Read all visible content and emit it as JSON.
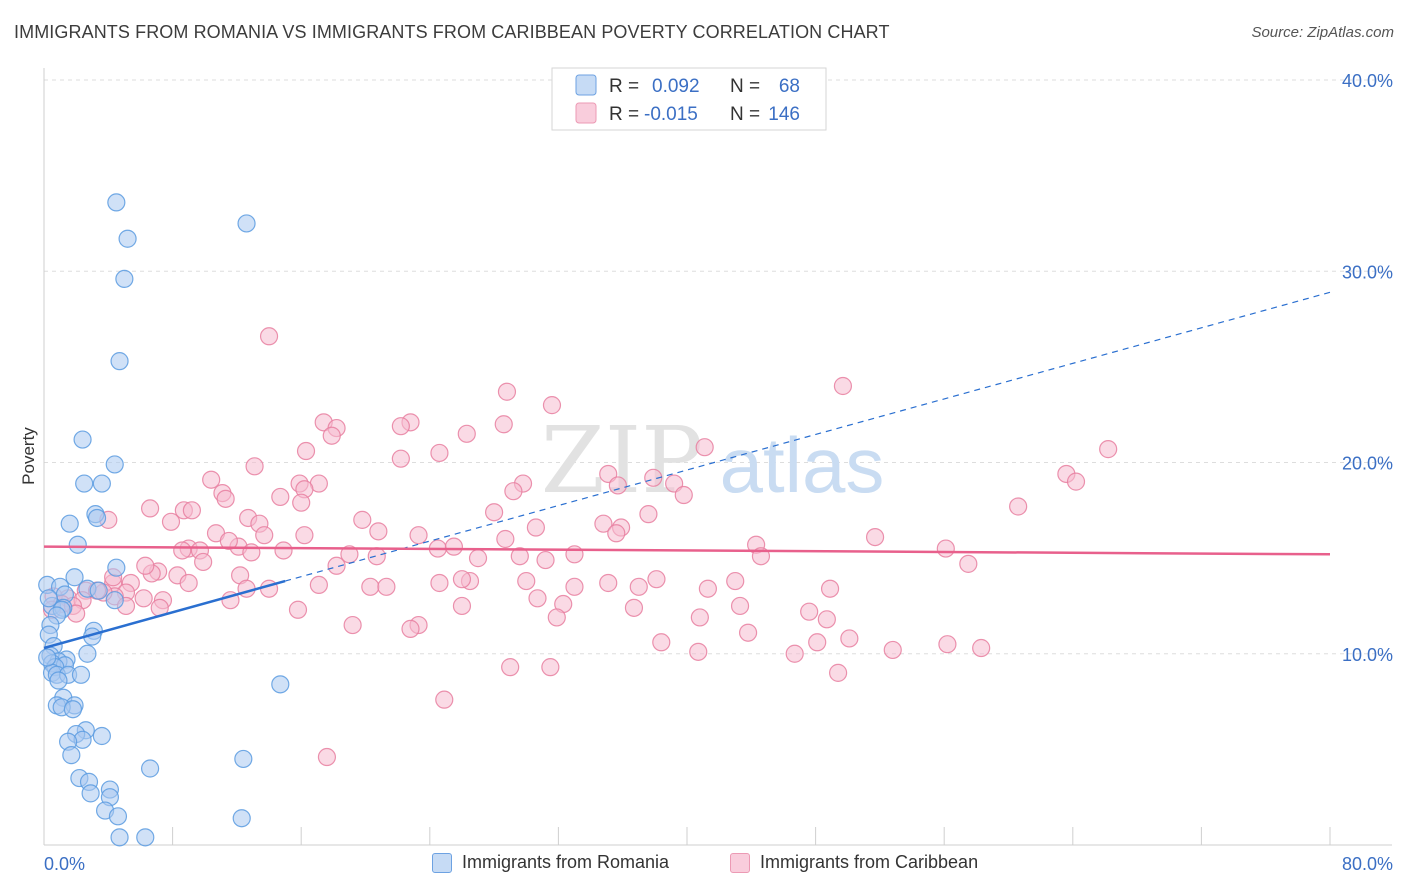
{
  "title": "IMMIGRANTS FROM ROMANIA VS IMMIGRANTS FROM CARIBBEAN POVERTY CORRELATION CHART",
  "source": "Source: ZipAtlas.com",
  "watermark": {
    "zip": "ZIP",
    "atlas": "atlas"
  },
  "colors": {
    "romania": "#5b9be0",
    "romania_fill": "#a9c9f0",
    "caribbean": "#e87fa0",
    "caribbean_fill": "#f5bcd0",
    "trend_romania": "#2a6fd0",
    "trend_caribbean": "#e8608c",
    "axis_text": "#3b6fc4"
  },
  "legend_top": [
    {
      "r_label": "R =",
      "r_value": "0.092",
      "n_label": "N =",
      "n_value": "68"
    },
    {
      "r_label": "R =",
      "r_value": "-0.015",
      "n_label": "N =",
      "n_value": "146"
    }
  ],
  "chart_data": {
    "type": "scatter",
    "xlabel": "",
    "ylabel": "Poverty",
    "xlim": [
      0,
      80
    ],
    "ylim": [
      0,
      40
    ],
    "x_tick_labels": [
      "0.0%",
      "80.0%"
    ],
    "y_ticks": [
      10,
      20,
      30,
      40
    ],
    "y_tick_labels": [
      "10.0%",
      "20.0%",
      "30.0%",
      "40.0%"
    ],
    "grid": true,
    "legend_position": "top-center",
    "series": [
      {
        "name": "Immigrants from Romania",
        "r": 0.092,
        "n": 68,
        "trend_solid": [
          [
            0,
            10.3
          ],
          [
            15,
            13.8
          ]
        ],
        "trend_dashed": [
          [
            15,
            13.8
          ],
          [
            80,
            28.9
          ]
        ],
        "points": [
          [
            4.5,
            33.6
          ],
          [
            5.2,
            31.7
          ],
          [
            5.0,
            29.6
          ],
          [
            12.6,
            32.5
          ],
          [
            4.7,
            25.3
          ],
          [
            2.4,
            21.2
          ],
          [
            4.4,
            19.9
          ],
          [
            2.5,
            18.9
          ],
          [
            3.6,
            18.9
          ],
          [
            3.2,
            17.3
          ],
          [
            3.3,
            17.1
          ],
          [
            1.6,
            16.8
          ],
          [
            2.1,
            15.7
          ],
          [
            4.5,
            14.5
          ],
          [
            1.9,
            14.0
          ],
          [
            0.2,
            13.6
          ],
          [
            1.0,
            13.5
          ],
          [
            2.7,
            13.4
          ],
          [
            3.4,
            13.3
          ],
          [
            1.3,
            13.1
          ],
          [
            4.4,
            12.8
          ],
          [
            0.5,
            12.5
          ],
          [
            1.2,
            12.4
          ],
          [
            1.1,
            12.3
          ],
          [
            0.8,
            12.0
          ],
          [
            0.4,
            11.5
          ],
          [
            3.1,
            11.2
          ],
          [
            0.3,
            11.0
          ],
          [
            3.0,
            10.9
          ],
          [
            0.6,
            10.4
          ],
          [
            2.7,
            10.0
          ],
          [
            0.4,
            9.9
          ],
          [
            1.4,
            9.7
          ],
          [
            0.9,
            9.6
          ],
          [
            0.5,
            9.5
          ],
          [
            1.3,
            9.4
          ],
          [
            0.7,
            9.3
          ],
          [
            0.5,
            9.0
          ],
          [
            0.8,
            8.9
          ],
          [
            1.5,
            8.9
          ],
          [
            2.3,
            8.9
          ],
          [
            0.9,
            8.6
          ],
          [
            14.7,
            8.4
          ],
          [
            1.2,
            7.7
          ],
          [
            0.8,
            7.3
          ],
          [
            1.9,
            7.3
          ],
          [
            1.1,
            7.2
          ],
          [
            1.8,
            7.1
          ],
          [
            2.6,
            6.0
          ],
          [
            2.0,
            5.8
          ],
          [
            3.6,
            5.7
          ],
          [
            2.4,
            5.5
          ],
          [
            1.5,
            5.4
          ],
          [
            1.7,
            4.7
          ],
          [
            12.4,
            4.5
          ],
          [
            6.6,
            4.0
          ],
          [
            2.2,
            3.5
          ],
          [
            2.8,
            3.3
          ],
          [
            4.1,
            2.9
          ],
          [
            2.9,
            2.7
          ],
          [
            4.1,
            2.5
          ],
          [
            3.8,
            1.8
          ],
          [
            4.6,
            1.5
          ],
          [
            12.3,
            1.4
          ],
          [
            4.7,
            0.4
          ],
          [
            6.3,
            0.4
          ],
          [
            0.2,
            9.8
          ],
          [
            0.3,
            12.9
          ]
        ]
      },
      {
        "name": "Immigrants from Caribbean",
        "r": -0.015,
        "n": 146,
        "trend_solid": [
          [
            0,
            15.6
          ],
          [
            80,
            15.2
          ]
        ],
        "points": [
          [
            14.0,
            26.6
          ],
          [
            49.7,
            24.0
          ],
          [
            28.8,
            23.7
          ],
          [
            31.6,
            23.0
          ],
          [
            17.4,
            22.1
          ],
          [
            22.8,
            22.1
          ],
          [
            22.2,
            21.9
          ],
          [
            18.2,
            21.8
          ],
          [
            28.6,
            22.0
          ],
          [
            17.9,
            21.4
          ],
          [
            26.3,
            21.5
          ],
          [
            41.1,
            20.8
          ],
          [
            66.2,
            20.7
          ],
          [
            24.6,
            20.5
          ],
          [
            16.3,
            20.6
          ],
          [
            22.2,
            20.2
          ],
          [
            13.1,
            19.8
          ],
          [
            35.1,
            19.4
          ],
          [
            10.4,
            19.1
          ],
          [
            37.9,
            19.2
          ],
          [
            63.6,
            19.4
          ],
          [
            15.9,
            18.9
          ],
          [
            17.1,
            18.9
          ],
          [
            29.8,
            18.9
          ],
          [
            39.2,
            18.9
          ],
          [
            64.2,
            19.0
          ],
          [
            35.7,
            18.8
          ],
          [
            16.2,
            18.6
          ],
          [
            11.1,
            18.4
          ],
          [
            29.2,
            18.5
          ],
          [
            11.3,
            18.1
          ],
          [
            39.8,
            18.3
          ],
          [
            14.7,
            18.2
          ],
          [
            16.0,
            17.9
          ],
          [
            6.6,
            17.6
          ],
          [
            8.7,
            17.5
          ],
          [
            9.2,
            17.5
          ],
          [
            28.0,
            17.4
          ],
          [
            60.6,
            17.7
          ],
          [
            19.8,
            17.0
          ],
          [
            37.6,
            17.3
          ],
          [
            12.7,
            17.1
          ],
          [
            4.0,
            17.0
          ],
          [
            30.6,
            16.6
          ],
          [
            34.8,
            16.8
          ],
          [
            35.9,
            16.6
          ],
          [
            7.9,
            16.9
          ],
          [
            20.8,
            16.4
          ],
          [
            13.4,
            16.8
          ],
          [
            35.6,
            16.3
          ],
          [
            23.3,
            16.2
          ],
          [
            16.2,
            16.2
          ],
          [
            28.7,
            16.0
          ],
          [
            10.7,
            16.3
          ],
          [
            13.7,
            16.2
          ],
          [
            51.7,
            16.1
          ],
          [
            44.3,
            15.7
          ],
          [
            12.1,
            15.6
          ],
          [
            24.5,
            15.5
          ],
          [
            56.1,
            15.5
          ],
          [
            9.0,
            15.5
          ],
          [
            14.9,
            15.4
          ],
          [
            25.5,
            15.6
          ],
          [
            12.9,
            15.3
          ],
          [
            9.7,
            15.4
          ],
          [
            19.0,
            15.2
          ],
          [
            20.7,
            15.1
          ],
          [
            29.6,
            15.1
          ],
          [
            44.6,
            15.1
          ],
          [
            33.0,
            15.2
          ],
          [
            27.0,
            15.0
          ],
          [
            9.9,
            14.8
          ],
          [
            31.2,
            14.9
          ],
          [
            57.5,
            14.7
          ],
          [
            18.2,
            14.6
          ],
          [
            7.1,
            14.3
          ],
          [
            6.7,
            14.2
          ],
          [
            8.3,
            14.1
          ],
          [
            12.2,
            14.1
          ],
          [
            38.1,
            13.9
          ],
          [
            26.5,
            13.8
          ],
          [
            43.0,
            13.8
          ],
          [
            4.3,
            13.7
          ],
          [
            5.4,
            13.7
          ],
          [
            26.0,
            13.9
          ],
          [
            33.0,
            13.5
          ],
          [
            35.1,
            13.7
          ],
          [
            30.0,
            13.8
          ],
          [
            24.6,
            13.7
          ],
          [
            17.1,
            13.6
          ],
          [
            37.0,
            13.5
          ],
          [
            41.3,
            13.4
          ],
          [
            12.6,
            13.4
          ],
          [
            20.3,
            13.5
          ],
          [
            21.3,
            13.5
          ],
          [
            14.0,
            13.4
          ],
          [
            48.9,
            13.4
          ],
          [
            2.6,
            13.3
          ],
          [
            5.1,
            13.2
          ],
          [
            4.4,
            13.0
          ],
          [
            3.7,
            13.2
          ],
          [
            1.5,
            12.9
          ],
          [
            6.2,
            12.9
          ],
          [
            7.4,
            12.8
          ],
          [
            11.6,
            12.8
          ],
          [
            0.6,
            13.0
          ],
          [
            2.4,
            12.8
          ],
          [
            30.7,
            12.9
          ],
          [
            5.1,
            12.5
          ],
          [
            1.1,
            12.6
          ],
          [
            1.8,
            12.5
          ],
          [
            32.3,
            12.6
          ],
          [
            43.3,
            12.5
          ],
          [
            47.6,
            12.2
          ],
          [
            2.0,
            12.1
          ],
          [
            26.0,
            12.5
          ],
          [
            15.8,
            12.3
          ],
          [
            7.2,
            12.4
          ],
          [
            36.7,
            12.4
          ],
          [
            31.9,
            11.9
          ],
          [
            40.8,
            11.9
          ],
          [
            48.7,
            11.8
          ],
          [
            19.2,
            11.5
          ],
          [
            23.3,
            11.5
          ],
          [
            22.8,
            11.3
          ],
          [
            43.8,
            11.1
          ],
          [
            50.1,
            10.8
          ],
          [
            38.4,
            10.6
          ],
          [
            56.2,
            10.5
          ],
          [
            48.1,
            10.6
          ],
          [
            52.8,
            10.2
          ],
          [
            58.3,
            10.3
          ],
          [
            40.7,
            10.1
          ],
          [
            46.7,
            10.0
          ],
          [
            29.0,
            9.3
          ],
          [
            31.5,
            9.3
          ],
          [
            49.4,
            9.0
          ],
          [
            24.9,
            7.6
          ],
          [
            17.6,
            4.6
          ],
          [
            0.5,
            12.3
          ],
          [
            3.3,
            13.3
          ],
          [
            4.3,
            14.0
          ],
          [
            8.6,
            15.4
          ],
          [
            11.5,
            15.9
          ],
          [
            6.3,
            14.6
          ],
          [
            9.0,
            13.7
          ]
        ]
      }
    ]
  }
}
